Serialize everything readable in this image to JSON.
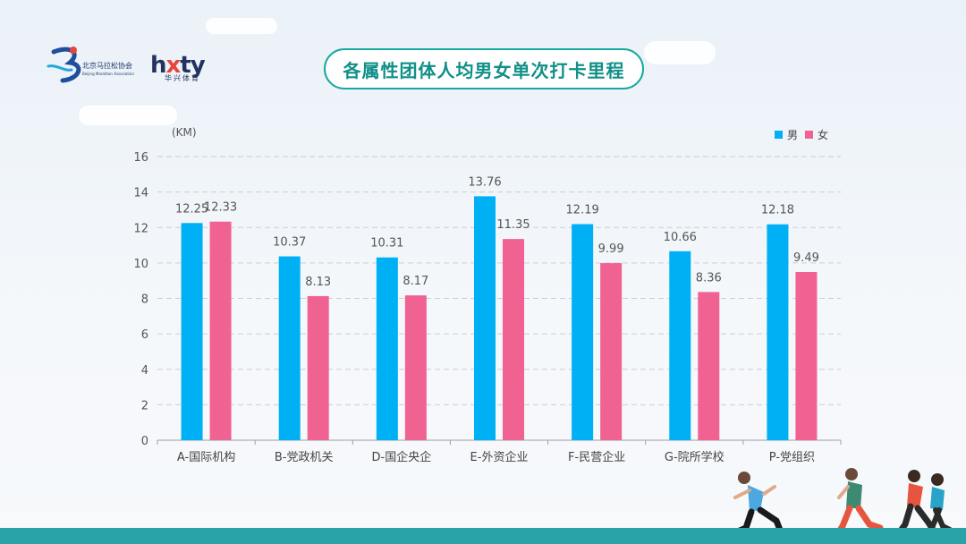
{
  "title": "各属性团体人均男女单次打卡里程",
  "logos": {
    "association_name": "北京马拉松协会",
    "association_sub": "Beijing Marathon Association",
    "brand_a": "h",
    "brand_x": "x",
    "brand_b": "ty",
    "brand_sub": "华兴体育"
  },
  "colors": {
    "male": "#00b0f4",
    "female": "#f06292",
    "accent": "#14a8a0"
  },
  "chart_data": {
    "type": "bar",
    "title": "",
    "ylabel": "(KM)",
    "xlabel": "",
    "ylim": [
      0,
      16
    ],
    "yticks": [
      0,
      2,
      4,
      6,
      8,
      10,
      12,
      14,
      16
    ],
    "grid": true,
    "legend_position": "top-right",
    "categories": [
      "A-国际机构",
      "B-党政机关",
      "D-国企央企",
      "E-外资企业",
      "F-民营企业",
      "G-院所学校",
      "P-党组织"
    ],
    "series": [
      {
        "name": "男",
        "color": "#00b0f4",
        "values": [
          12.25,
          10.37,
          10.31,
          13.76,
          12.19,
          10.66,
          12.18
        ]
      },
      {
        "name": "女",
        "color": "#f06292",
        "values": [
          12.33,
          8.13,
          8.17,
          11.35,
          9.99,
          8.36,
          9.49
        ]
      }
    ]
  }
}
